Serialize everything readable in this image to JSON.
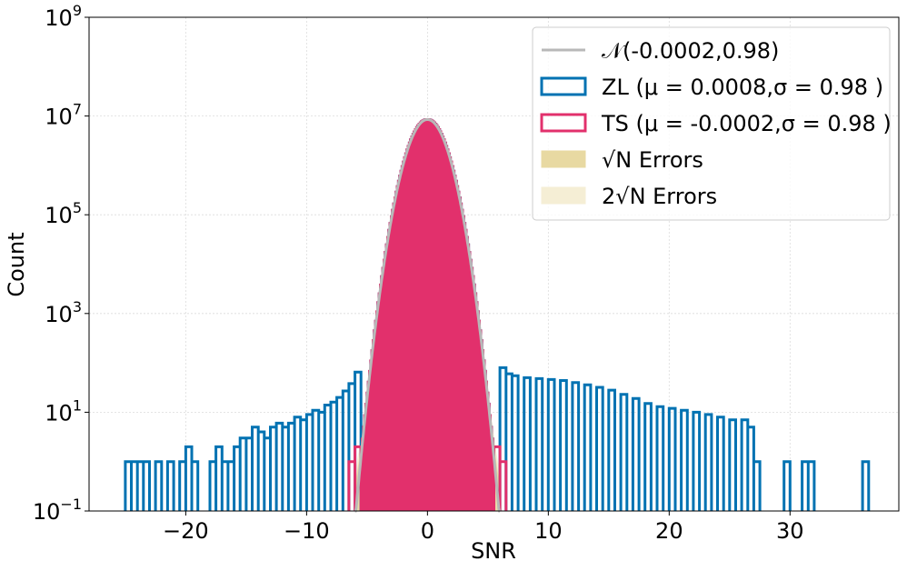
{
  "chart_data": {
    "type": "histogram",
    "xlabel": "SNR",
    "ylabel": "Count",
    "xlim": [
      -28,
      39
    ],
    "ylim": [
      0.1,
      1000000000
    ],
    "yscale": "log",
    "grid": true,
    "x_ticks": [
      {
        "value": -20,
        "label": "−20"
      },
      {
        "value": -10,
        "label": "−10"
      },
      {
        "value": 0,
        "label": "0"
      },
      {
        "value": 10,
        "label": "10"
      },
      {
        "value": 20,
        "label": "20"
      },
      {
        "value": 30,
        "label": "30"
      }
    ],
    "y_ticks": [
      {
        "value": 0.1,
        "base": "10",
        "exp": "−1"
      },
      {
        "value": 10,
        "base": "10",
        "exp": "1"
      },
      {
        "value": 1000,
        "base": "10",
        "exp": "3"
      },
      {
        "value": 100000,
        "base": "10",
        "exp": "5"
      },
      {
        "value": 10000000,
        "base": "10",
        "exp": "7"
      },
      {
        "value": 1000000000,
        "base": "10",
        "exp": "9"
      }
    ],
    "legend_position": "top-right",
    "legend": [
      {
        "kind": "line",
        "color": "#b8b8b8",
        "label": "𝒩(-0.0002,0.98)"
      },
      {
        "kind": "box",
        "color": "#0072b2",
        "label": "ZL (μ = 0.0008,σ = 0.98 )"
      },
      {
        "kind": "box",
        "color": "#e2306c",
        "label": "TS (μ = -0.0002,σ = 0.98 )"
      },
      {
        "kind": "fill",
        "color": "#e8d9a2",
        "label": "√N Errors"
      },
      {
        "kind": "fill",
        "color": "#f5eed5",
        "label": "2√N Errors"
      }
    ],
    "series": [
      {
        "name": "ZL",
        "style": "step",
        "color": "#0072b2",
        "gaussian": {
          "amplitude": 8500000,
          "mu": 0.0008,
          "sigma": 0.98
        },
        "tail_points": [
          [
            -25,
            1
          ],
          [
            -24.5,
            1
          ],
          [
            -24,
            1
          ],
          [
            -23.5,
            1
          ],
          [
            -22.5,
            1
          ],
          [
            -21.5,
            1
          ],
          [
            -20.5,
            1
          ],
          [
            -20,
            2
          ],
          [
            -19.5,
            1
          ],
          [
            -18,
            1
          ],
          [
            -17.5,
            2
          ],
          [
            -17,
            1
          ],
          [
            -16.5,
            1
          ],
          [
            -16,
            2
          ],
          [
            -15.5,
            3
          ],
          [
            -15,
            3
          ],
          [
            -14.5,
            5
          ],
          [
            -14,
            4
          ],
          [
            -13.5,
            3
          ],
          [
            -13,
            5
          ],
          [
            -12.5,
            6
          ],
          [
            -12,
            5
          ],
          [
            -11.5,
            6
          ],
          [
            -11,
            8
          ],
          [
            -10.5,
            7
          ],
          [
            -10,
            9
          ],
          [
            -9.5,
            11
          ],
          [
            -9,
            10
          ],
          [
            -8.5,
            14
          ],
          [
            -8,
            16
          ],
          [
            -7.5,
            20
          ],
          [
            -7,
            27
          ],
          [
            -6.5,
            38
          ],
          [
            -6,
            65
          ],
          [
            6,
            80
          ],
          [
            6.5,
            60
          ],
          [
            7,
            55
          ],
          [
            8,
            50
          ],
          [
            9,
            48
          ],
          [
            10,
            46
          ],
          [
            11,
            44
          ],
          [
            12,
            40
          ],
          [
            13,
            36
          ],
          [
            14,
            32
          ],
          [
            15,
            28
          ],
          [
            16,
            23
          ],
          [
            17,
            19
          ],
          [
            18,
            15
          ],
          [
            19,
            13
          ],
          [
            20,
            12
          ],
          [
            21,
            11
          ],
          [
            22,
            10
          ],
          [
            23,
            9
          ],
          [
            24,
            8
          ],
          [
            25,
            7
          ],
          [
            26,
            7
          ],
          [
            26.5,
            5
          ],
          [
            27,
            1
          ],
          [
            29.5,
            1
          ],
          [
            31,
            1
          ],
          [
            31.5,
            1
          ],
          [
            36,
            1
          ]
        ]
      },
      {
        "name": "TS",
        "style": "step",
        "color": "#e2306c",
        "gaussian": {
          "amplitude": 8500000,
          "mu": -0.0002,
          "sigma": 0.98
        },
        "tail_points": [
          [
            -6.5,
            1
          ],
          [
            -6,
            2
          ],
          [
            5.5,
            2
          ],
          [
            6,
            1
          ]
        ]
      },
      {
        "name": "𝒩(-0.0002,0.98)",
        "style": "line",
        "color": "#b8b8b8",
        "gaussian": {
          "amplitude": 8500000,
          "mu": -0.0002,
          "sigma": 0.98
        },
        "x_range": [
          -6,
          6
        ]
      }
    ]
  }
}
